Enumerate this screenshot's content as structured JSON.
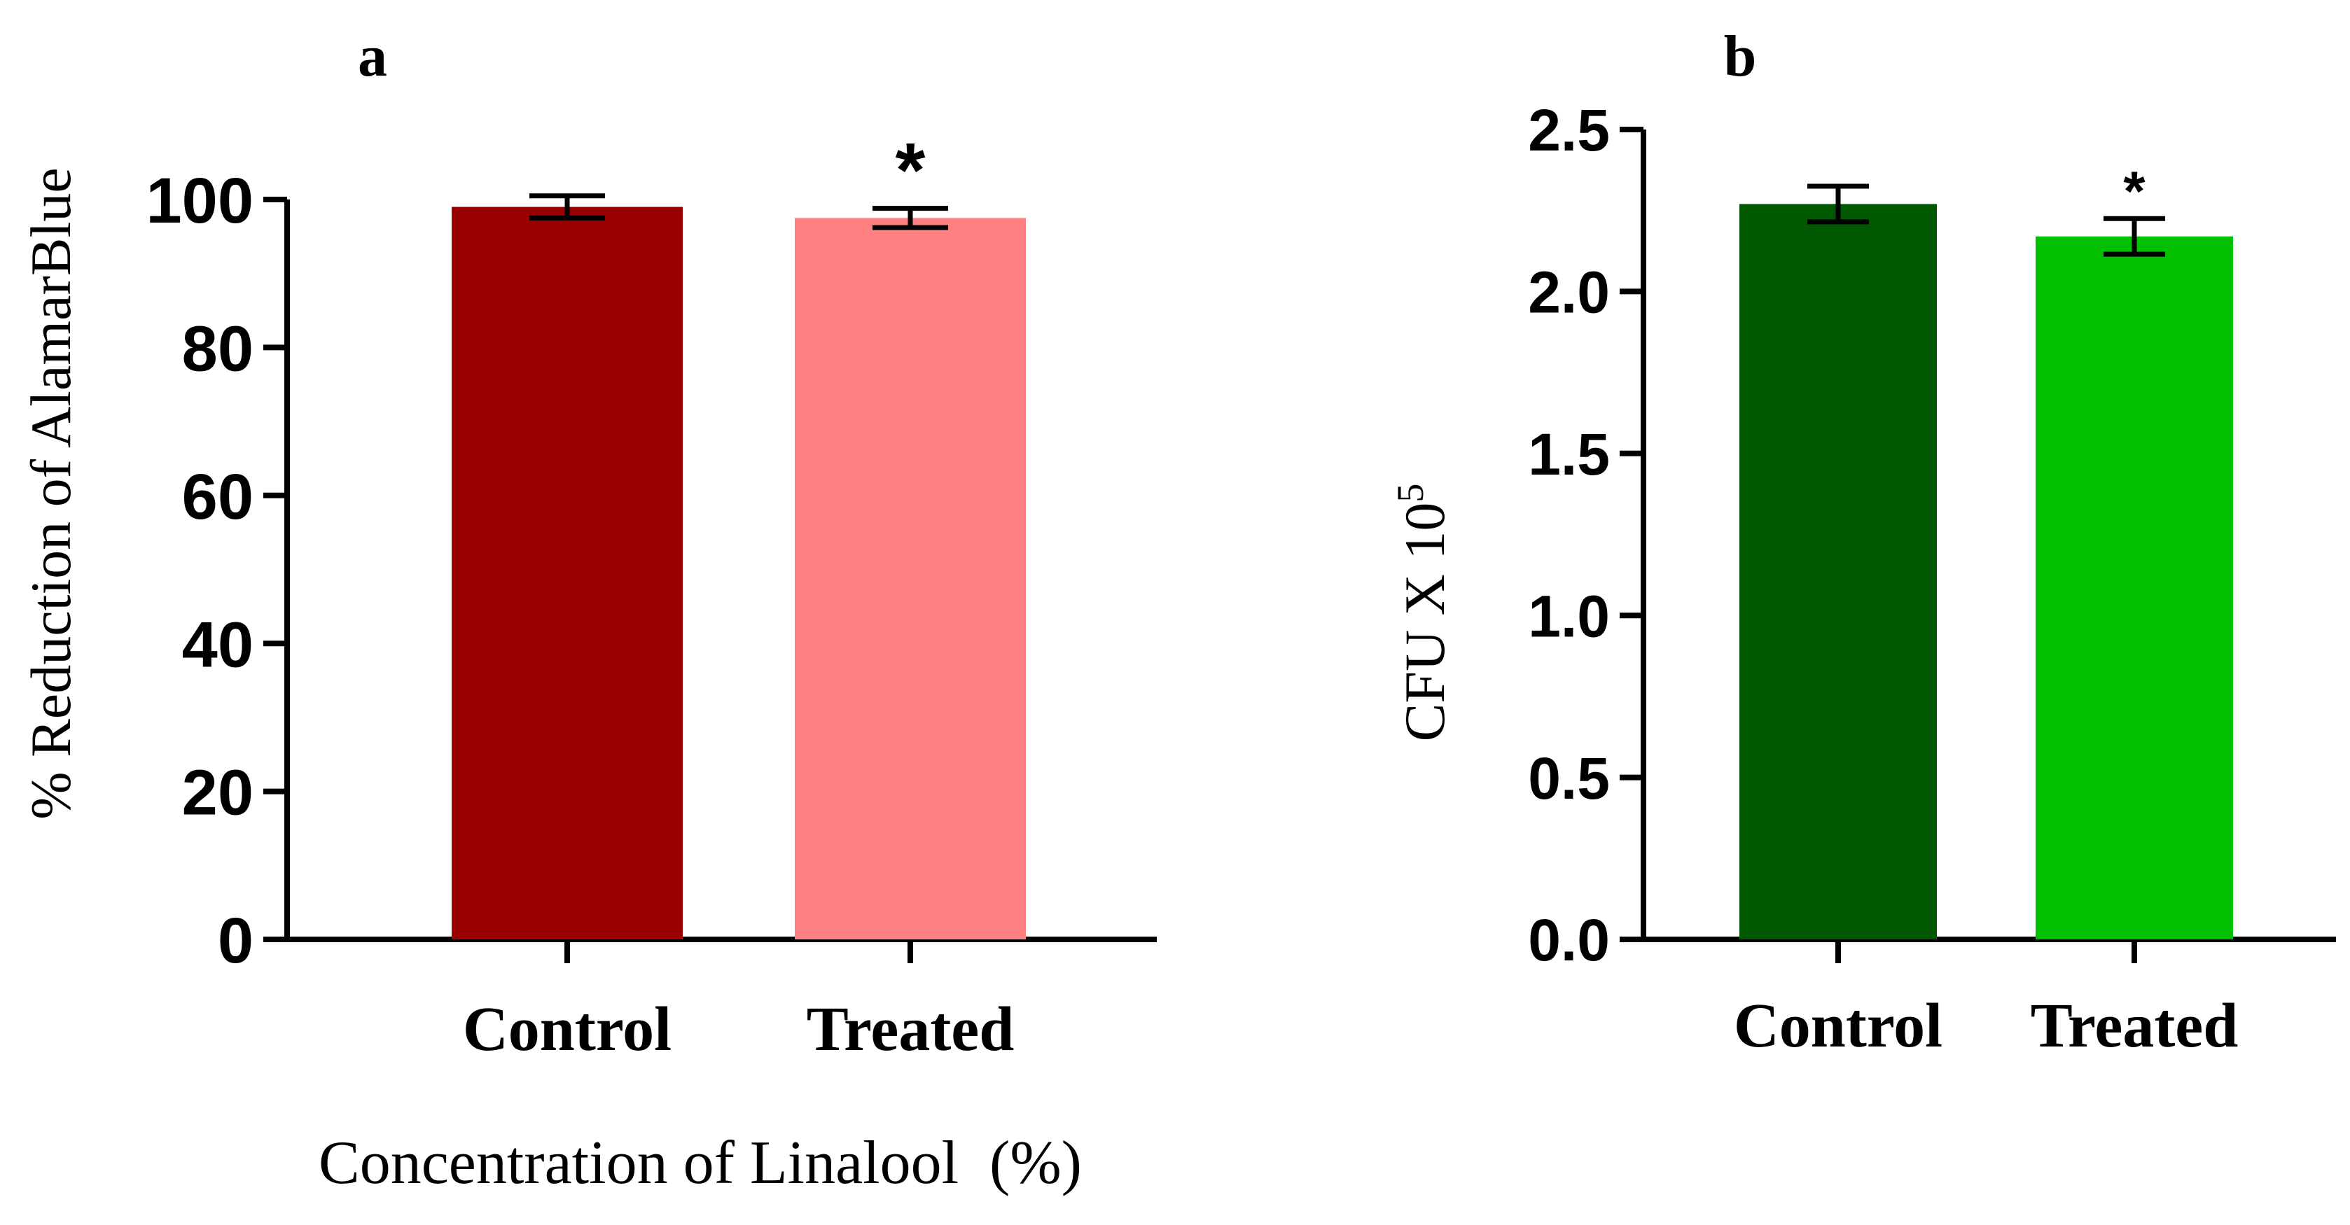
{
  "chart_data": [
    {
      "type": "bar",
      "panel_label": "a",
      "title": "",
      "categories": [
        "Control",
        "Treated"
      ],
      "values": [
        99,
        97.5
      ],
      "errors": [
        1.5,
        1.3
      ],
      "significance": [
        "",
        "*"
      ],
      "colors": [
        "#9b0000",
        "#ff8080"
      ],
      "xlabel": "Concentration of Linalool  (%)",
      "ylabel": "% Reduction of AlamarBlue",
      "ylim": [
        0,
        100
      ],
      "yticks": [
        0,
        20,
        40,
        60,
        80,
        100
      ],
      "ytick_labels": [
        "0",
        "20",
        "40",
        "60",
        "80",
        "100"
      ],
      "grid": false
    },
    {
      "type": "bar",
      "panel_label": "b",
      "title": "",
      "categories": [
        "Control",
        "Treated"
      ],
      "values": [
        2.27,
        2.17
      ],
      "errors": [
        0.055,
        0.055
      ],
      "significance": [
        "",
        "*"
      ],
      "colors": [
        "#005800",
        "#00c000"
      ],
      "xlabel": "",
      "ylabel_main": "CFU X 10",
      "ylabel_exp": "5",
      "ylim": [
        0,
        2.5
      ],
      "yticks": [
        0,
        0.5,
        1.0,
        1.5,
        2.0,
        2.5
      ],
      "ytick_labels": [
        "0.0",
        "0.5",
        "1.0",
        "1.5",
        "2.0",
        "2.5"
      ],
      "grid": false
    }
  ]
}
